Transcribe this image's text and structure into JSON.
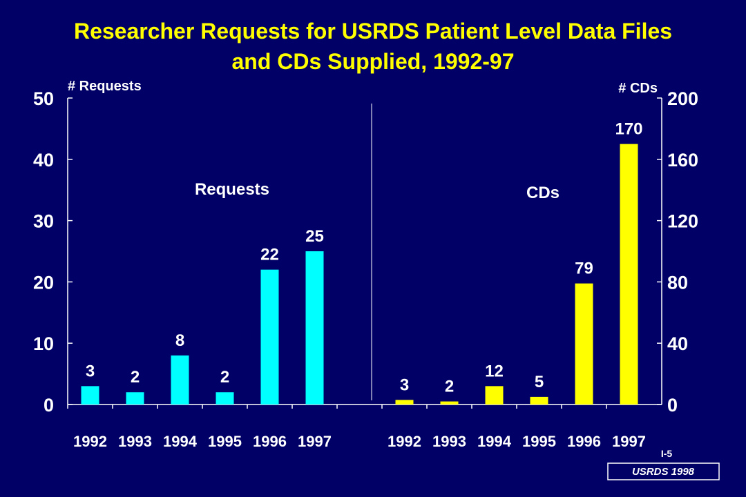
{
  "chart_data": {
    "type": "bar",
    "title_line1": "Researcher Requests for USRDS Patient Level Data Files",
    "title_line2": "and CDs Supplied, 1992-97",
    "left_axis_title": "# Requests",
    "right_axis_title": "# CDs",
    "left_ylim": [
      0,
      50
    ],
    "right_ylim": [
      0,
      200
    ],
    "left_ticks": [
      "0",
      "10",
      "20",
      "30",
      "40",
      "50"
    ],
    "right_ticks": [
      "0",
      "40",
      "80",
      "120",
      "160",
      "200"
    ],
    "series": [
      {
        "name": "Requests",
        "axis": "left",
        "color": "#00FFFF",
        "categories": [
          "1992",
          "1993",
          "1994",
          "1995",
          "1996",
          "1997"
        ],
        "values": [
          3,
          2,
          8,
          2,
          22,
          25
        ]
      },
      {
        "name": "CDs",
        "axis": "right",
        "color": "#FFFF00",
        "categories": [
          "1992",
          "1993",
          "1994",
          "1995",
          "1996",
          "1997"
        ],
        "values": [
          3,
          2,
          12,
          5,
          79,
          170
        ]
      }
    ],
    "grid": false
  },
  "footer": {
    "slide_id": "I-5",
    "source": "USRDS 1998"
  }
}
